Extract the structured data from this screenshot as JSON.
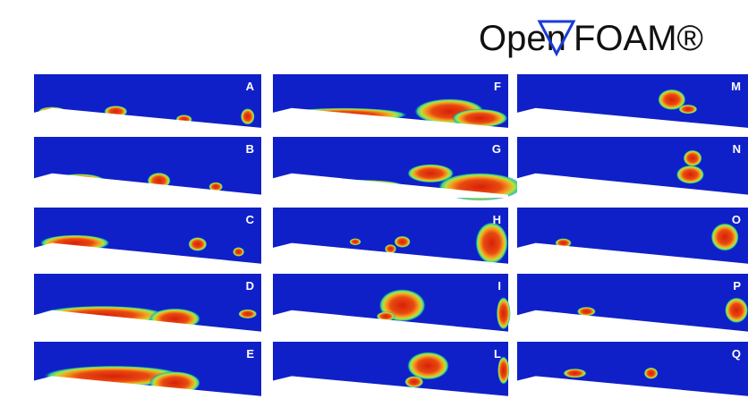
{
  "logo": {
    "left": "Open",
    "right": "FOAM®"
  },
  "panels": [
    {
      "label": "A"
    },
    {
      "label": "B"
    },
    {
      "label": "C"
    },
    {
      "label": "D"
    },
    {
      "label": "E"
    },
    {
      "label": "F"
    },
    {
      "label": "G"
    },
    {
      "label": "H"
    },
    {
      "label": "I"
    },
    {
      "label": "L"
    },
    {
      "label": "M"
    },
    {
      "label": "N"
    },
    {
      "label": "O"
    },
    {
      "label": "P"
    },
    {
      "label": "Q"
    }
  ]
}
